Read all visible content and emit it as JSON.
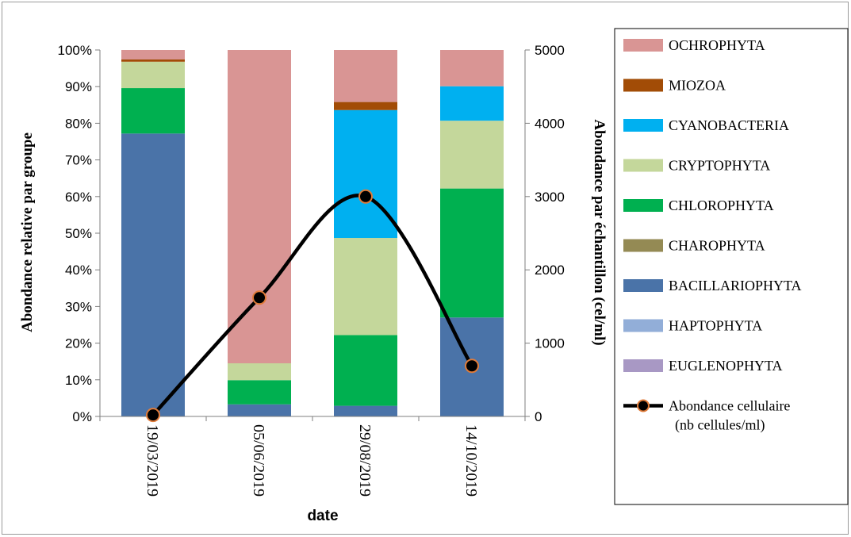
{
  "chart_data": {
    "type": "bar",
    "stacked": true,
    "xlabel": "date",
    "ylabel": "Abondance relative par groupe",
    "y2label": "Abondance par échantillon (cel/ml)",
    "ylim": [
      0,
      100
    ],
    "y2lim": [
      0,
      5000
    ],
    "y_ticks": [
      "0%",
      "10%",
      "20%",
      "30%",
      "40%",
      "50%",
      "60%",
      "70%",
      "80%",
      "90%",
      "100%"
    ],
    "y2_ticks": [
      "0",
      "1000",
      "2000",
      "3000",
      "4000",
      "5000"
    ],
    "categories": [
      "19/03/2019",
      "05/06/2019",
      "29/08/2019",
      "14/10/2019"
    ],
    "series": [
      {
        "name": "EUGLENOPHYTA",
        "color": "#a898c4",
        "values": [
          0,
          0,
          0,
          0
        ]
      },
      {
        "name": "HAPTOPHYTA",
        "color": "#92aed8",
        "values": [
          0,
          0,
          0,
          0
        ]
      },
      {
        "name": "BACILLARIOPHYTA",
        "color": "#4a73a8",
        "values": [
          77.2,
          3.3,
          2.9,
          27
        ]
      },
      {
        "name": "CHAROPHYTA",
        "color": "#948a54",
        "values": [
          0,
          0,
          0,
          0
        ]
      },
      {
        "name": "CHLOROPHYTA",
        "color": "#00b050",
        "values": [
          12.4,
          6.6,
          19.3,
          35.2
        ]
      },
      {
        "name": "CRYPTOPHYTA",
        "color": "#c4d79b",
        "values": [
          7.2,
          4.6,
          26.5,
          18.5
        ]
      },
      {
        "name": "CYANOBACTERIA",
        "color": "#00b0f0",
        "values": [
          0,
          0,
          34.9,
          9.4
        ]
      },
      {
        "name": "MIOZOA",
        "color": "#a24c06",
        "values": [
          0.6,
          0,
          2.2,
          0
        ]
      },
      {
        "name": "OCHROPHYTA",
        "color": "#d99594",
        "values": [
          2.6,
          85.5,
          14.2,
          9.9
        ]
      }
    ],
    "line": {
      "name": "Abondance cellulaire (nb cellules/ml)",
      "axis": "y2",
      "color": "#000000",
      "marker_color": "#e07b39",
      "values": [
        20,
        1620,
        3000,
        690
      ]
    },
    "legend": {
      "placement": "right",
      "order": [
        "OCHROPHYTA",
        "MIOZOA",
        "CYANOBACTERIA",
        "CRYPTOPHYTA",
        "CHLOROPHYTA",
        "CHAROPHYTA",
        "BACILLARIOPHYTA",
        "HAPTOPHYTA",
        "EUGLENOPHYTA"
      ],
      "line_label_1": "Abondance cellulaire",
      "line_label_2": "(nb cellules/ml)"
    },
    "grid": false
  }
}
